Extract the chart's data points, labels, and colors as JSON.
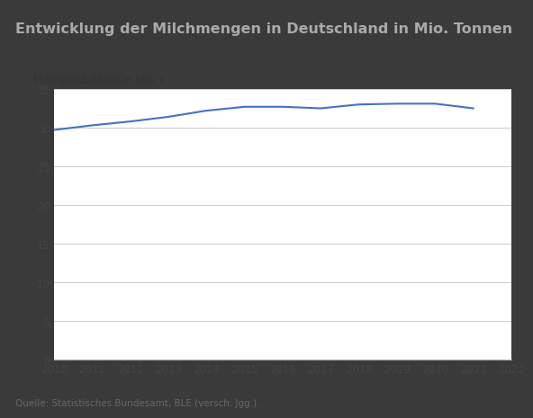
{
  "title": "Entwicklung der Milchmengen in Deutschland in Mio. Tonnen",
  "ylabel": "Milchproduktion in Mio. t",
  "source": "Quelle: Statistisches Bundesamt, BLE (versch. Jgg.).",
  "years": [
    2010,
    2011,
    2012,
    2013,
    2014,
    2015,
    2016,
    2017,
    2018,
    2019,
    2020,
    2021
  ],
  "values": [
    29.7,
    30.3,
    30.8,
    31.4,
    32.2,
    32.7,
    32.7,
    32.5,
    33.0,
    33.1,
    33.1,
    32.5
  ],
  "line_color": "#4472C4",
  "line_width": 1.5,
  "ylim": [
    0,
    35
  ],
  "yticks": [
    0,
    5,
    10,
    15,
    20,
    25,
    30,
    35
  ],
  "xlim": [
    2010,
    2022
  ],
  "xticks": [
    2010,
    2011,
    2012,
    2013,
    2014,
    2015,
    2016,
    2017,
    2018,
    2019,
    2020,
    2021,
    2022
  ],
  "title_fontsize": 11.5,
  "ylabel_fontsize": 8.5,
  "tick_fontsize": 8.5,
  "source_fontsize": 7.5,
  "bg_color": "#ffffff",
  "title_bg_color": "#3a3a3a",
  "title_text_color": "#aaaaaa",
  "grid_color": "#cccccc",
  "axis_color": "#aaaaaa"
}
